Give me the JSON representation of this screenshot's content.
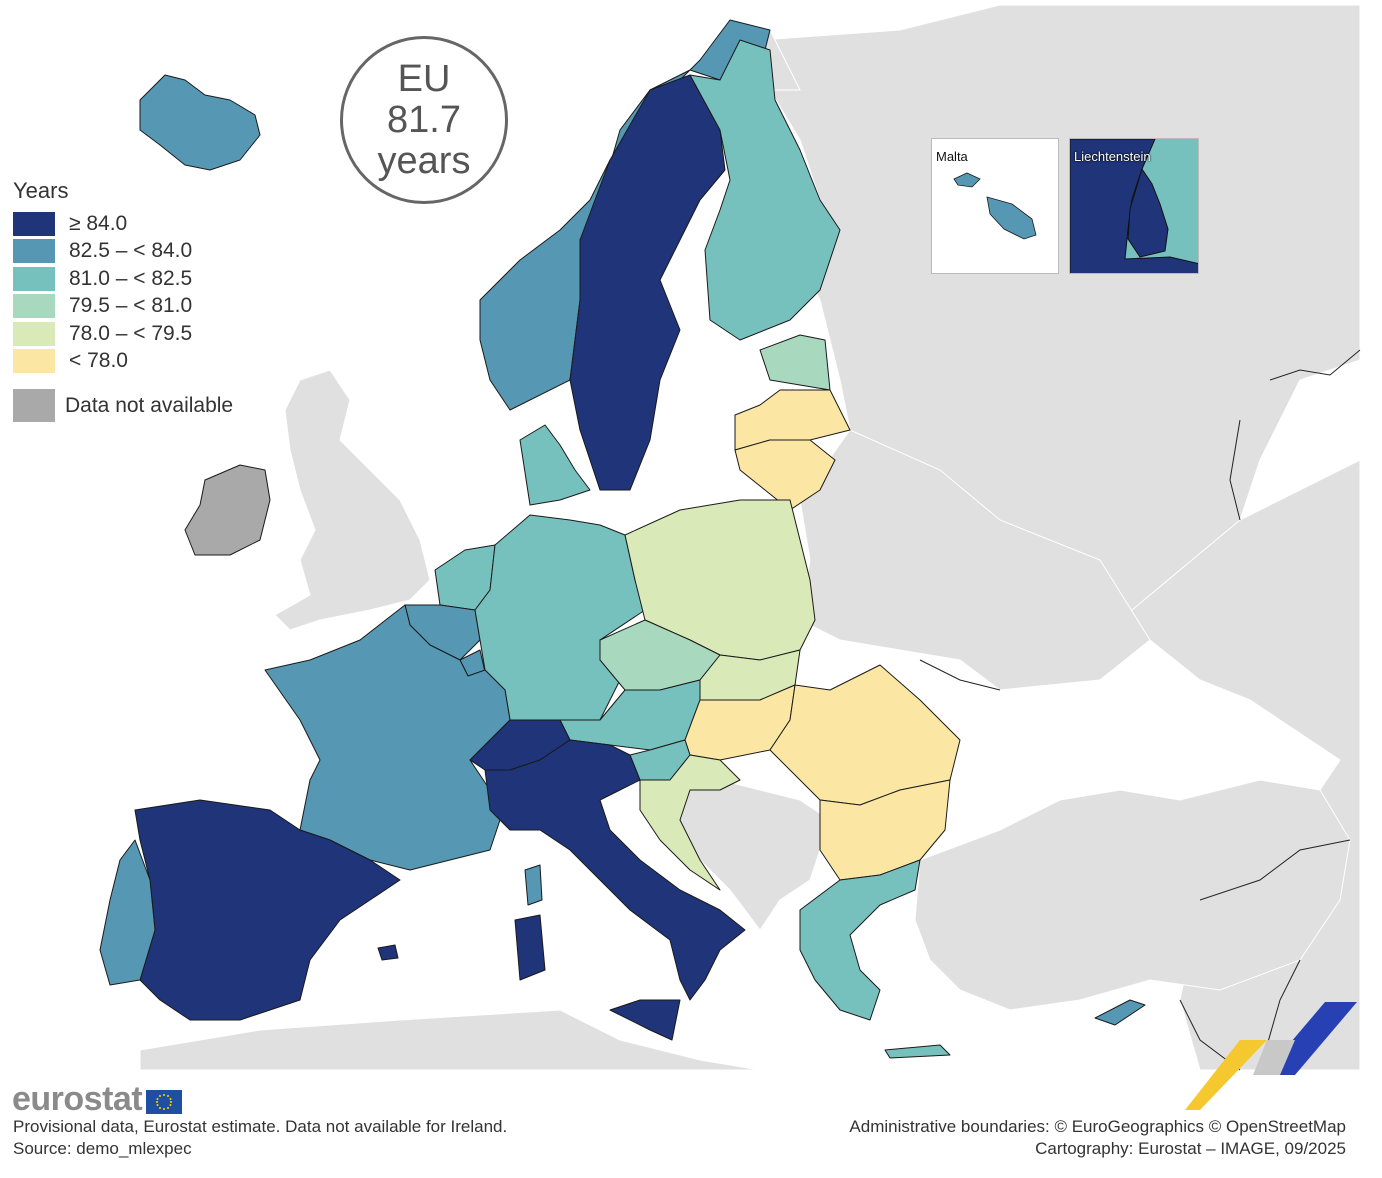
{
  "summary": {
    "line1": "EU",
    "line2": "81.7",
    "line3": "years"
  },
  "legend": {
    "title": "Years",
    "classes": [
      {
        "label": "≥ 84.0",
        "color": "#1f3479"
      },
      {
        "label": "82.5 – < 84.0",
        "color": "#5698b4"
      },
      {
        "label": "81.0 – < 82.5",
        "color": "#76c1bd"
      },
      {
        "label": "79.5 – < 81.0",
        "color": "#a8d8bd"
      },
      {
        "label": "78.0 – < 79.5",
        "color": "#d9e9b8"
      },
      {
        "label": "< 78.0",
        "color": "#fbe7a3"
      }
    ],
    "not_available": {
      "label": "Data not available",
      "color": "#a9a9a9"
    }
  },
  "insets": {
    "malta": "Malta",
    "liechtenstein": "Liechtenstein"
  },
  "footer": {
    "brand": "eurostat",
    "note": "Provisional data, Eurostat estimate. Data not available for Ireland.",
    "source": "Source: demo_mlexpec",
    "boundaries": "Administrative boundaries: © EuroGeographics © OpenStreetMap",
    "cartography": "Cartography: Eurostat – IMAGE, 09/2025"
  },
  "colors": {
    "non_eu": "#e0e0e0",
    "sea": "#ffffff"
  }
}
